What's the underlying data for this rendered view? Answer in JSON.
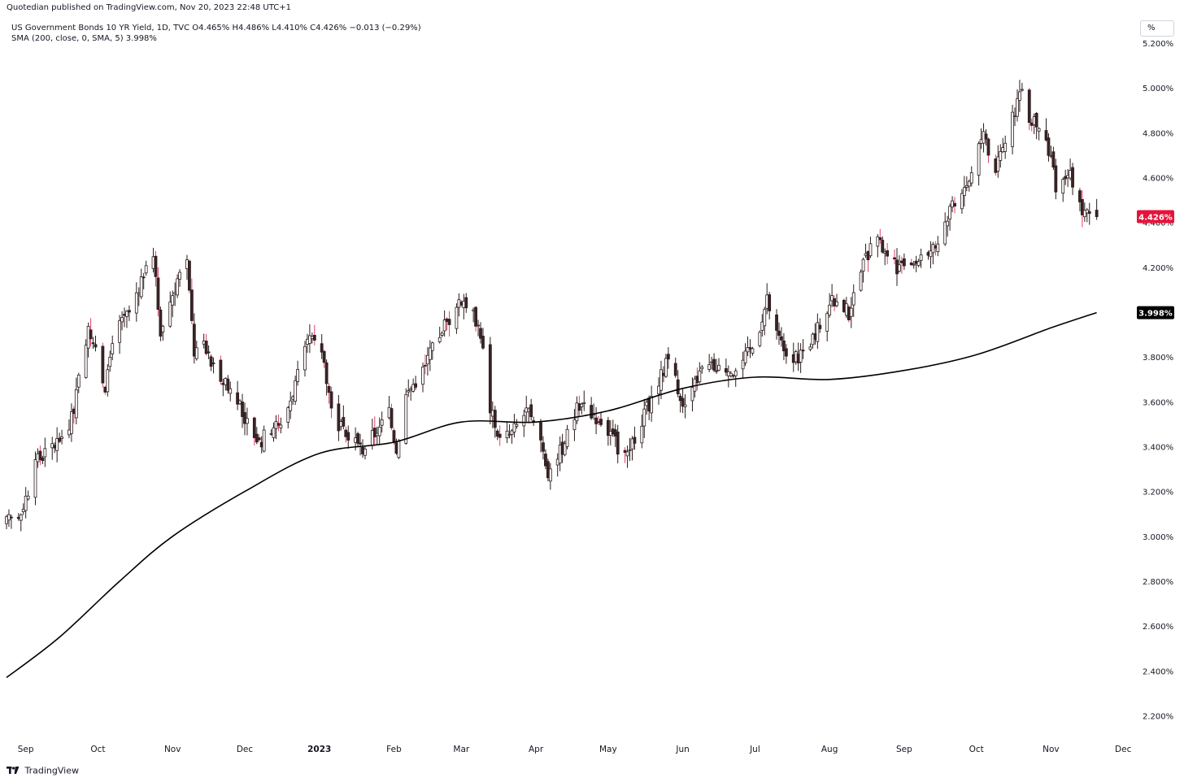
{
  "header": {
    "published": "Quotedian published on TradingView.com, Nov 20, 2023 22:48 UTC+1",
    "legend_line1": "US Government Bonds 10 YR Yield, 1D, TVC  O4.465%  H4.486%  L4.410%  C4.426%  −0.013 (−0.29%)",
    "legend_line2": "SMA (200, close, 0, SMA, 5)  3.998%",
    "scale_button": "%"
  },
  "footer": {
    "brand": "TradingView",
    "logo_icon": "tradingview-logo-icon"
  },
  "colors": {
    "up": "#ffffff",
    "down": "#3a2526",
    "wick": "#2a1a1b",
    "red_wick": "#e0416b",
    "sma": "#000000",
    "last_badge": "#e5133a",
    "sma_badge": "#000000"
  },
  "chart_data": {
    "type": "candlestick",
    "symbol": "US Government Bonds 10 YR Yield",
    "interval": "1D",
    "ylim": [
      2.1,
      5.32
    ],
    "y_ticks": [
      "5.200%",
      "5.000%",
      "4.800%",
      "4.600%",
      "4.400%",
      "4.200%",
      "4.000%",
      "3.800%",
      "3.600%",
      "3.400%",
      "3.200%",
      "3.000%",
      "2.800%",
      "2.600%",
      "2.400%",
      "2.200%"
    ],
    "x_ticks": [
      {
        "label": "Sep",
        "date": "2022-09-01"
      },
      {
        "label": "Oct",
        "date": "2022-10-01"
      },
      {
        "label": "Nov",
        "date": "2022-11-01"
      },
      {
        "label": "Dec",
        "date": "2022-12-01"
      },
      {
        "label": "2023",
        "date": "2023-01-01"
      },
      {
        "label": "Feb",
        "date": "2023-02-01"
      },
      {
        "label": "Mar",
        "date": "2023-03-01"
      },
      {
        "label": "Apr",
        "date": "2023-04-01"
      },
      {
        "label": "May",
        "date": "2023-05-01"
      },
      {
        "label": "Jun",
        "date": "2023-06-01"
      },
      {
        "label": "Jul",
        "date": "2023-07-01"
      },
      {
        "label": "Aug",
        "date": "2023-08-01"
      },
      {
        "label": "Sep",
        "date": "2023-09-01"
      },
      {
        "label": "Oct",
        "date": "2023-10-01"
      },
      {
        "label": "Nov",
        "date": "2023-11-01"
      },
      {
        "label": "Dec",
        "date": "2023-12-01"
      }
    ],
    "x_range": [
      "2022-08-24",
      "2023-12-06"
    ],
    "last_date": "2023-11-20",
    "close_path": [
      [
        "2022-08-24",
        3.06
      ],
      [
        "2022-08-30",
        3.11
      ],
      [
        "2022-09-06",
        3.34
      ],
      [
        "2022-09-13",
        3.41
      ],
      [
        "2022-09-16",
        3.45
      ],
      [
        "2022-09-21",
        3.54
      ],
      [
        "2022-09-23",
        3.7
      ],
      [
        "2022-09-27",
        3.95
      ],
      [
        "2022-09-30",
        3.83
      ],
      [
        "2022-10-04",
        3.62
      ],
      [
        "2022-10-07",
        3.89
      ],
      [
        "2022-10-14",
        4.0
      ],
      [
        "2022-10-21",
        4.21
      ],
      [
        "2022-10-24",
        4.24
      ],
      [
        "2022-10-27",
        3.92
      ],
      [
        "2022-11-03",
        4.15
      ],
      [
        "2022-11-07",
        4.21
      ],
      [
        "2022-11-10",
        3.82
      ],
      [
        "2022-11-14",
        3.86
      ],
      [
        "2022-11-17",
        3.77
      ],
      [
        "2022-11-23",
        3.7
      ],
      [
        "2022-12-01",
        3.53
      ],
      [
        "2022-12-07",
        3.42
      ],
      [
        "2022-12-13",
        3.5
      ],
      [
        "2022-12-16",
        3.48
      ],
      [
        "2022-12-22",
        3.68
      ],
      [
        "2022-12-28",
        3.88
      ],
      [
        "2023-01-03",
        3.79
      ],
      [
        "2023-01-06",
        3.56
      ],
      [
        "2023-01-12",
        3.44
      ],
      [
        "2023-01-19",
        3.39
      ],
      [
        "2023-01-24",
        3.46
      ],
      [
        "2023-01-30",
        3.54
      ],
      [
        "2023-02-02",
        3.39
      ],
      [
        "2023-02-06",
        3.63
      ],
      [
        "2023-02-14",
        3.76
      ],
      [
        "2023-02-21",
        3.93
      ],
      [
        "2023-03-02",
        4.06
      ],
      [
        "2023-03-07",
        3.97
      ],
      [
        "2023-03-09",
        3.91
      ],
      [
        "2023-03-13",
        3.57
      ],
      [
        "2023-03-17",
        3.43
      ],
      [
        "2023-03-22",
        3.46
      ],
      [
        "2023-03-28",
        3.56
      ],
      [
        "2023-04-03",
        3.43
      ],
      [
        "2023-04-06",
        3.29
      ],
      [
        "2023-04-12",
        3.4
      ],
      [
        "2023-04-19",
        3.59
      ],
      [
        "2023-04-25",
        3.55
      ],
      [
        "2023-05-02",
        3.45
      ],
      [
        "2023-05-05",
        3.4
      ],
      [
        "2023-05-11",
        3.4
      ],
      [
        "2023-05-16",
        3.54
      ],
      [
        "2023-05-24",
        3.74
      ],
      [
        "2023-05-26",
        3.8
      ],
      [
        "2023-06-01",
        3.6
      ],
      [
        "2023-06-09",
        3.74
      ],
      [
        "2023-06-16",
        3.76
      ],
      [
        "2023-06-23",
        3.74
      ],
      [
        "2023-06-30",
        3.84
      ],
      [
        "2023-07-06",
        4.05
      ],
      [
        "2023-07-12",
        3.86
      ],
      [
        "2023-07-18",
        3.79
      ],
      [
        "2023-07-24",
        3.87
      ],
      [
        "2023-08-01",
        4.04
      ],
      [
        "2023-08-04",
        4.04
      ],
      [
        "2023-08-09",
        4.0
      ],
      [
        "2023-08-15",
        4.22
      ],
      [
        "2023-08-21",
        4.34
      ],
      [
        "2023-08-25",
        4.23
      ],
      [
        "2023-09-01",
        4.18
      ],
      [
        "2023-09-08",
        4.26
      ],
      [
        "2023-09-14",
        4.29
      ],
      [
        "2023-09-21",
        4.49
      ],
      [
        "2023-09-28",
        4.58
      ],
      [
        "2023-10-03",
        4.8
      ],
      [
        "2023-10-09",
        4.65
      ],
      [
        "2023-10-12",
        4.7
      ],
      [
        "2023-10-19",
        4.99
      ],
      [
        "2023-10-24",
        4.84
      ],
      [
        "2023-10-27",
        4.84
      ],
      [
        "2023-11-01",
        4.67
      ],
      [
        "2023-11-03",
        4.57
      ],
      [
        "2023-11-07",
        4.57
      ],
      [
        "2023-11-09",
        4.62
      ],
      [
        "2023-11-14",
        4.44
      ],
      [
        "2023-11-17",
        4.44
      ],
      [
        "2023-11-20",
        4.426
      ]
    ],
    "sma": {
      "name": "SMA (200, close, 0, SMA, 5)",
      "last_value": 3.998,
      "points": [
        [
          "2022-08-24",
          2.37
        ],
        [
          "2022-09-15",
          2.55
        ],
        [
          "2022-10-10",
          2.8
        ],
        [
          "2022-11-01",
          3.0
        ],
        [
          "2022-12-01",
          3.2
        ],
        [
          "2023-01-01",
          3.37
        ],
        [
          "2023-02-01",
          3.42
        ],
        [
          "2023-03-01",
          3.51
        ],
        [
          "2023-04-01",
          3.51
        ],
        [
          "2023-05-01",
          3.56
        ],
        [
          "2023-06-01",
          3.66
        ],
        [
          "2023-07-01",
          3.71
        ],
        [
          "2023-08-01",
          3.7
        ],
        [
          "2023-09-01",
          3.74
        ],
        [
          "2023-10-01",
          3.81
        ],
        [
          "2023-11-01",
          3.93
        ],
        [
          "2023-11-20",
          3.998
        ]
      ]
    },
    "last_price": {
      "value": 4.426,
      "label": "4.426%"
    },
    "sma_label": "3.998%",
    "grid": false
  }
}
